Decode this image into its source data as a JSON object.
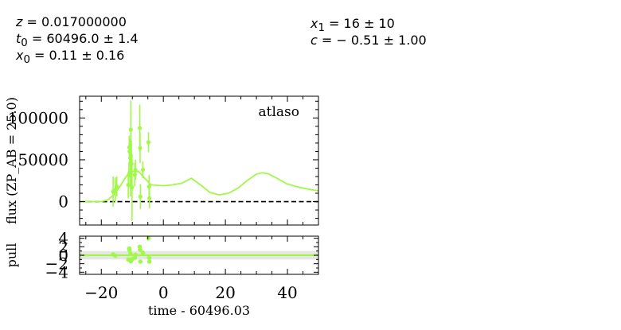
{
  "params_left": [
    {
      "sym": "z",
      "sub": "",
      "val": " = 0.017000000"
    },
    {
      "sym": "t",
      "sub": "0",
      "val": " = 60496.0 ± 1.4"
    },
    {
      "sym": "x",
      "sub": "0",
      "val": " = 0.11 ± 0.16"
    }
  ],
  "params_right": [
    {
      "sym": "x",
      "sub": "1",
      "val": " = 16 ± 10"
    },
    {
      "sym": "c",
      "sub": "",
      "val": " = − 0.51 ± 1.00"
    }
  ],
  "chart_data": [
    {
      "type": "scatter",
      "title": "",
      "legend": "atlaso",
      "legend_placement": "top-right",
      "xlabel": "time - 60496.03",
      "ylabel": "flux (ZP_AB = 25.0)",
      "xlim": [
        -27,
        50
      ],
      "ylim": [
        -28000,
        126000
      ],
      "yticks": [
        0,
        50000,
        100000
      ],
      "xticks": [
        -20,
        0,
        20,
        40
      ],
      "zero_line": 0,
      "color": "#a2f84a",
      "series": [
        {
          "points": [
            {
              "x": -16.2,
              "y": 12000,
              "err": 18000
            },
            {
              "x": -15.5,
              "y": 14000,
              "err": 15000
            },
            {
              "x": -15.0,
              "y": 18000,
              "err": 12000
            },
            {
              "x": -11.3,
              "y": 20000,
              "err": 16000
            },
            {
              "x": -11.1,
              "y": 32000,
              "err": 15000
            },
            {
              "x": -11.0,
              "y": 65000,
              "err": 14000
            },
            {
              "x": -10.9,
              "y": 60000,
              "err": 15000
            },
            {
              "x": -10.7,
              "y": 52000,
              "err": 16000
            },
            {
              "x": -10.6,
              "y": 36000,
              "err": 30000
            },
            {
              "x": -10.5,
              "y": 86000,
              "err": 35000
            },
            {
              "x": -10.3,
              "y": 45000,
              "err": 28000
            },
            {
              "x": -10.1,
              "y": 17000,
              "err": 40000
            },
            {
              "x": -9.2,
              "y": 32000,
              "err": 14000
            },
            {
              "x": -9.0,
              "y": 38000,
              "err": 12000
            },
            {
              "x": -7.6,
              "y": 88000,
              "err": 28000
            },
            {
              "x": -7.5,
              "y": 64000,
              "err": 18000
            },
            {
              "x": -7.4,
              "y": 6000,
              "err": 15000
            },
            {
              "x": -6.6,
              "y": 38000,
              "err": 10000
            },
            {
              "x": -4.8,
              "y": 71000,
              "err": 12000
            },
            {
              "x": -4.6,
              "y": 18000,
              "err": 14000
            },
            {
              "x": -4.5,
              "y": 4000,
              "err": 12000
            }
          ],
          "model": [
            [
              -27,
              0
            ],
            [
              -20,
              0
            ],
            [
              -18,
              2000
            ],
            [
              -16,
              8000
            ],
            [
              -14,
              18000
            ],
            [
              -12,
              30000
            ],
            [
              -10,
              36000
            ],
            [
              -8,
              36000
            ],
            [
              -6,
              28000
            ],
            [
              -4,
              20000
            ],
            [
              0,
              19000
            ],
            [
              3,
              20000
            ],
            [
              6,
              22000
            ],
            [
              9,
              28000
            ],
            [
              12,
              20000
            ],
            [
              15,
              11000
            ],
            [
              18,
              8000
            ],
            [
              21,
              10000
            ],
            [
              24,
              16000
            ],
            [
              27,
              25000
            ],
            [
              30,
              33000
            ],
            [
              32,
              34500
            ],
            [
              34,
              33000
            ],
            [
              37,
              27000
            ],
            [
              40,
              21000
            ],
            [
              44,
              17000
            ],
            [
              48,
              14000
            ],
            [
              50,
              13000
            ]
          ]
        }
      ]
    },
    {
      "type": "scatter",
      "title": "",
      "xlabel": "time - 60496.03",
      "ylabel": "pull",
      "xlim": [
        -27,
        50
      ],
      "ylim": [
        -4.5,
        4.5
      ],
      "yticks": [
        -4,
        -2,
        0,
        2,
        4
      ],
      "color": "#a2f84a",
      "band": [
        -1,
        1
      ],
      "series": [
        {
          "points": [
            {
              "x": -16.2,
              "y": 0.2
            },
            {
              "x": -15.5,
              "y": -0.1
            },
            {
              "x": -11.3,
              "y": -1.0
            },
            {
              "x": -11.0,
              "y": 1.6
            },
            {
              "x": -10.9,
              "y": 1.2
            },
            {
              "x": -10.6,
              "y": 0.4
            },
            {
              "x": -10.5,
              "y": -1.4
            },
            {
              "x": -10.1,
              "y": -0.9
            },
            {
              "x": -9.2,
              "y": -0.6
            },
            {
              "x": -9.0,
              "y": 0.1
            },
            {
              "x": -7.6,
              "y": 2.0
            },
            {
              "x": -7.5,
              "y": 1.3
            },
            {
              "x": -7.4,
              "y": -1.5
            },
            {
              "x": -6.6,
              "y": 0.6
            },
            {
              "x": -4.8,
              "y": 4.0
            },
            {
              "x": -4.6,
              "y": -0.6
            },
            {
              "x": -4.5,
              "y": -1.5
            }
          ]
        }
      ]
    }
  ]
}
